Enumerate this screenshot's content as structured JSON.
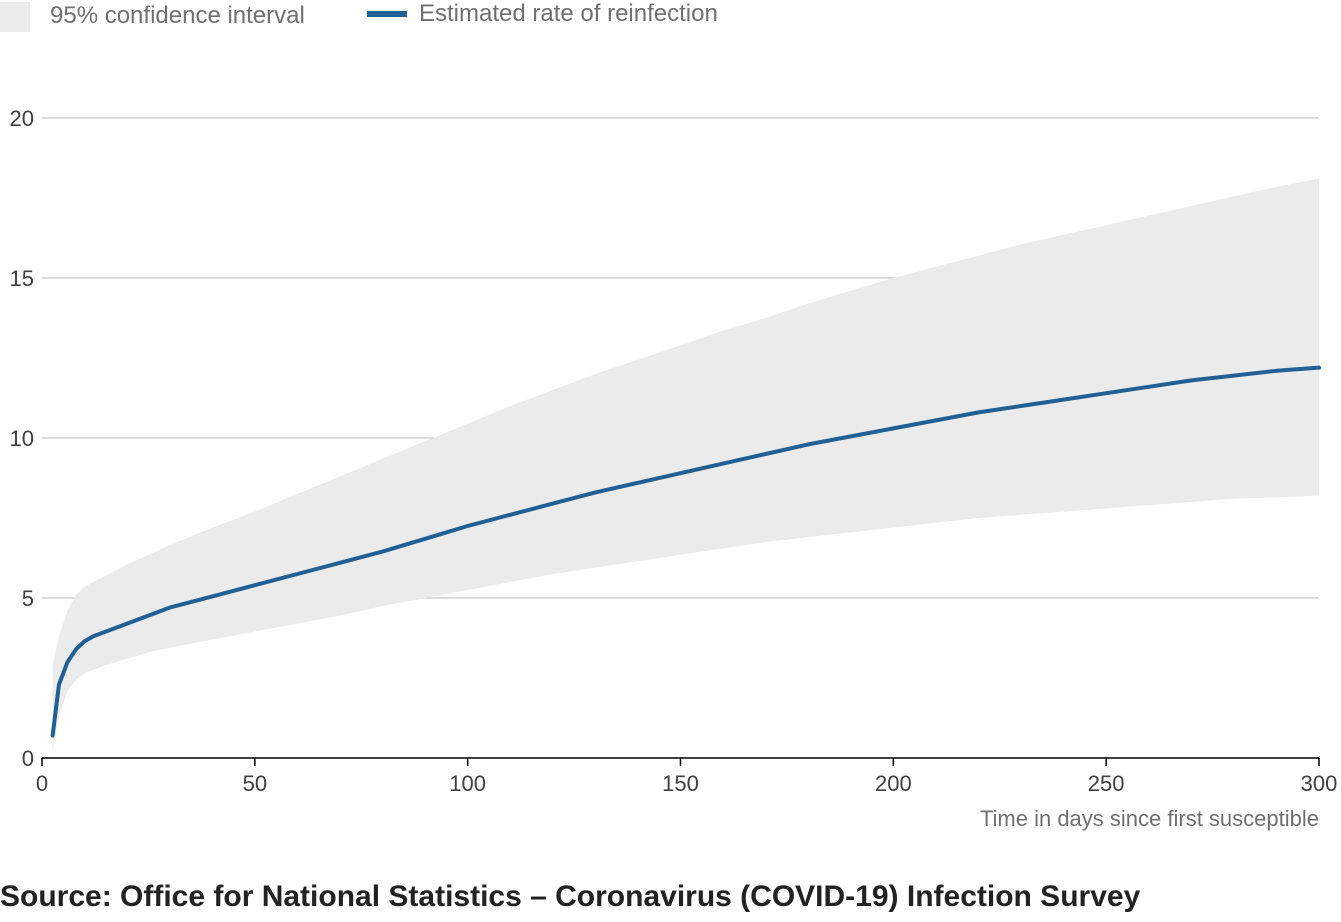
{
  "legend": {
    "band_label": "95% confidence interval",
    "line_label": "Estimated rate of reinfection"
  },
  "source": "Source: Office for National Statistics – Coronavirus (COVID-19) Infection Survey",
  "colors": {
    "line": "#206095",
    "band": "#ebebeb",
    "grid": "#c8c8c8",
    "axis": "#000000"
  },
  "chart_data": {
    "type": "area",
    "title": "",
    "xlabel": "Time in days since first susceptible",
    "ylabel": "",
    "xlim": [
      0,
      300
    ],
    "ylim": [
      0,
      20
    ],
    "x_ticks": [
      0,
      50,
      100,
      150,
      200,
      250,
      300
    ],
    "y_ticks": [
      0,
      5,
      10,
      15,
      20
    ],
    "grid": true,
    "legend_position": "top-left",
    "series": [
      {
        "name": "Estimated rate of reinfection",
        "kind": "line",
        "x": [
          2.5,
          4,
          6,
          8,
          10,
          12,
          15,
          20,
          25,
          30,
          40,
          50,
          60,
          70,
          80,
          90,
          100,
          110,
          120,
          130,
          140,
          150,
          160,
          170,
          180,
          190,
          200,
          210,
          220,
          230,
          240,
          250,
          260,
          270,
          280,
          290,
          300
        ],
        "y": [
          0.7,
          2.3,
          3.0,
          3.4,
          3.65,
          3.8,
          3.95,
          4.2,
          4.45,
          4.7,
          5.05,
          5.4,
          5.75,
          6.1,
          6.45,
          6.85,
          7.25,
          7.6,
          7.95,
          8.3,
          8.6,
          8.9,
          9.2,
          9.5,
          9.8,
          10.05,
          10.3,
          10.55,
          10.8,
          11.0,
          11.2,
          11.4,
          11.6,
          11.8,
          11.95,
          12.1,
          12.2
        ]
      },
      {
        "name": "95% confidence interval",
        "kind": "band",
        "x": [
          2.5,
          4,
          6,
          8,
          10,
          12,
          15,
          20,
          25,
          30,
          40,
          50,
          60,
          70,
          80,
          90,
          100,
          110,
          120,
          130,
          140,
          150,
          160,
          170,
          180,
          190,
          200,
          210,
          220,
          230,
          240,
          250,
          260,
          270,
          280,
          290,
          300
        ],
        "upper": [
          2.9,
          3.8,
          4.6,
          5.1,
          5.35,
          5.5,
          5.7,
          6.05,
          6.35,
          6.65,
          7.2,
          7.7,
          8.25,
          8.8,
          9.35,
          9.9,
          10.45,
          11.0,
          11.5,
          12.0,
          12.45,
          12.9,
          13.35,
          13.75,
          14.2,
          14.6,
          15.0,
          15.35,
          15.7,
          16.05,
          16.35,
          16.65,
          16.95,
          17.25,
          17.55,
          17.85,
          18.1
        ],
        "lower": [
          0.2,
          1.3,
          2.1,
          2.45,
          2.65,
          2.75,
          2.9,
          3.1,
          3.3,
          3.45,
          3.7,
          3.95,
          4.2,
          4.45,
          4.75,
          5.0,
          5.25,
          5.5,
          5.75,
          5.95,
          6.15,
          6.35,
          6.55,
          6.75,
          6.9,
          7.05,
          7.2,
          7.35,
          7.5,
          7.6,
          7.7,
          7.8,
          7.9,
          8.0,
          8.1,
          8.15,
          8.2
        ]
      }
    ]
  }
}
